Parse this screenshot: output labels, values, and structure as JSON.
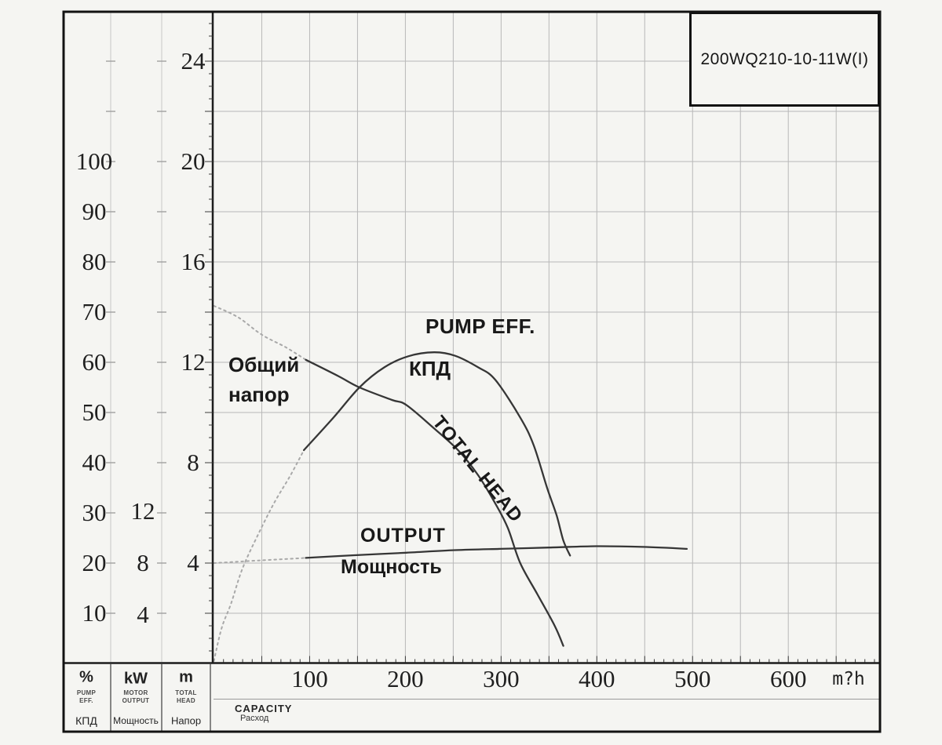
{
  "model": "200WQ210-10-11W(I)",
  "curve_labels": {
    "pump_eff_en": "PUMP EFF.",
    "pump_eff_ru": "КПД",
    "total_head_ru_1": "Общий",
    "total_head_ru_2": "напор",
    "total_head_en": "TOTAL HEAD",
    "output_en": "OUTPUT",
    "output_ru": "Мощность"
  },
  "legend": {
    "eff": {
      "unit": "%",
      "en1": "PUMP",
      "en2": "EFF.",
      "ru": "КПД"
    },
    "power": {
      "unit": "kW",
      "en1": "MOTOR",
      "en2": "OUTPUT",
      "ru": "Мощность"
    },
    "head": {
      "unit": "m",
      "en1": "TOTAL",
      "en2": "HEAD",
      "ru": "Напор"
    },
    "capacity": {
      "en": "CAPACITY",
      "ru": "Расход",
      "flow_unit": "m?h"
    }
  },
  "chart_data": {
    "type": "line",
    "title": "200WQ210-10-11W(I)",
    "x_axis": {
      "name": "CAPACITY",
      "unit": "m?h",
      "tick_labels": [
        100,
        200,
        300,
        400,
        500,
        600
      ],
      "range": [
        0,
        698
      ],
      "minor_step": 10,
      "major_step": 50
    },
    "y_axes": {
      "efficiency": {
        "unit": "%",
        "tick_labels": [
          100,
          90,
          80,
          70,
          60,
          50,
          40,
          30,
          20,
          10
        ],
        "range": [
          0,
          130
        ]
      },
      "power": {
        "unit": "kW",
        "tick_labels": [
          12,
          8,
          4
        ],
        "range": [
          0,
          50
        ]
      },
      "head": {
        "unit": "m",
        "tick_labels": [
          24,
          20,
          16,
          12,
          8,
          4
        ],
        "range": [
          0,
          26
        ],
        "grid_step": 2
      }
    },
    "series": [
      {
        "name": "total-head-dotted",
        "axis": "head",
        "line": "dotted",
        "points": [
          [
            0,
            14.25
          ],
          [
            25,
            13.8
          ],
          [
            50,
            13.1
          ],
          [
            75,
            12.6
          ],
          [
            96,
            12.1
          ]
        ]
      },
      {
        "name": "total-head",
        "axis": "head",
        "line": "solid",
        "points": [
          [
            96,
            12.1
          ],
          [
            130,
            11.45
          ],
          [
            152,
            11.0
          ],
          [
            186,
            10.5
          ],
          [
            201,
            10.3
          ],
          [
            229,
            9.4
          ],
          [
            255,
            8.5
          ],
          [
            276,
            7.5
          ],
          [
            295,
            6.3
          ],
          [
            307,
            5.4
          ],
          [
            320,
            4.0
          ],
          [
            338,
            2.75
          ],
          [
            356,
            1.5
          ],
          [
            365,
            0.7
          ]
        ]
      },
      {
        "name": "efficiency-dotted",
        "axis": "efficiency",
        "line": "dotted",
        "points": [
          [
            0,
            0.5
          ],
          [
            8,
            7
          ],
          [
            18,
            12
          ],
          [
            30,
            19
          ],
          [
            47,
            26
          ],
          [
            63,
            32
          ],
          [
            80,
            37.5
          ],
          [
            94,
            42.5
          ]
        ]
      },
      {
        "name": "efficiency",
        "axis": "efficiency",
        "line": "solid",
        "points": [
          [
            94,
            42.5
          ],
          [
            125,
            49
          ],
          [
            152,
            55
          ],
          [
            178,
            59
          ],
          [
            203,
            61.2
          ],
          [
            230,
            62
          ],
          [
            252,
            61.3
          ],
          [
            276,
            59
          ],
          [
            294,
            56.5
          ],
          [
            320,
            49
          ],
          [
            334,
            43.5
          ],
          [
            348,
            35
          ],
          [
            358,
            29.5
          ],
          [
            365,
            24.5
          ],
          [
            372,
            21.5
          ]
        ]
      },
      {
        "name": "output-dotted",
        "axis": "power",
        "line": "dotted",
        "points": [
          [
            0,
            8.0
          ],
          [
            47,
            8.2
          ],
          [
            96,
            8.4
          ]
        ]
      },
      {
        "name": "output",
        "axis": "power",
        "line": "solid",
        "points": [
          [
            96,
            8.4
          ],
          [
            145,
            8.6
          ],
          [
            201,
            8.8
          ],
          [
            252,
            9.0
          ],
          [
            299,
            9.1
          ],
          [
            350,
            9.2
          ],
          [
            399,
            9.3
          ],
          [
            448,
            9.25
          ],
          [
            494,
            9.1
          ]
        ]
      }
    ]
  },
  "colors": {
    "paper": "#f5f5f2",
    "grid": "#b8b8b8",
    "column_line": "#c7c7c6",
    "column_tick": "#a0a0a0",
    "axis": "#1c1c1c",
    "tick": "#3a3a3a",
    "curve": "#363636",
    "curve_dotted": "#a9a9a9",
    "legend_line": "#3d3d3d",
    "legend_subline": "#9a9a9a"
  }
}
